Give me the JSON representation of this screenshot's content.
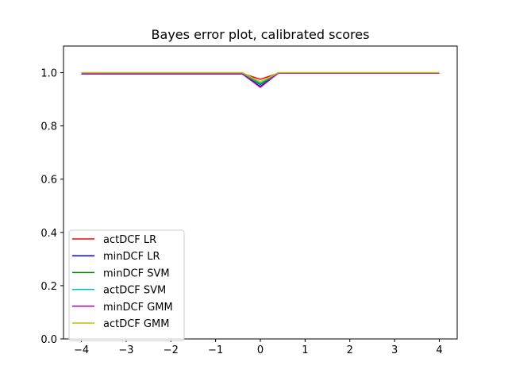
{
  "chart_data": {
    "type": "line",
    "title": "Bayes error plot, calibrated scores",
    "xlabel": "",
    "ylabel": "",
    "xlim": [
      -4.4,
      4.4
    ],
    "ylim": [
      0.0,
      1.1
    ],
    "xticks": [
      "−4",
      "−3",
      "−2",
      "−1",
      "0",
      "1",
      "2",
      "3",
      "4"
    ],
    "xtick_values": [
      -4,
      -3,
      -2,
      -1,
      0,
      1,
      2,
      3,
      4
    ],
    "yticks": [
      "0.0",
      "0.2",
      "0.4",
      "0.6",
      "0.8",
      "1.0"
    ],
    "ytick_values": [
      0.0,
      0.2,
      0.4,
      0.6,
      0.8,
      1.0
    ],
    "grid": false,
    "legend_position": "lower-left",
    "x": [
      -4,
      -0.4,
      0,
      0.4,
      4
    ],
    "series": [
      {
        "name": "actDCF LR",
        "color": "#ff0000",
        "values": [
          0.997,
          0.997,
          0.975,
          0.998,
          0.998
        ]
      },
      {
        "name": "minDCF LR",
        "color": "#0000ff",
        "values": [
          0.995,
          0.995,
          0.948,
          0.998,
          0.998
        ]
      },
      {
        "name": "minDCF SVM",
        "color": "#008000",
        "values": [
          0.997,
          0.997,
          0.955,
          0.998,
          0.998
        ]
      },
      {
        "name": "actDCF SVM",
        "color": "#00bfbf",
        "values": [
          0.998,
          0.998,
          0.96,
          0.999,
          0.999
        ]
      },
      {
        "name": "minDCF GMM",
        "color": "#bf00bf",
        "values": [
          0.995,
          0.995,
          0.945,
          0.998,
          0.998
        ]
      },
      {
        "name": "actDCF GMM",
        "color": "#bfbf00",
        "values": [
          1.0,
          1.0,
          0.965,
          1.0,
          1.0
        ]
      }
    ]
  }
}
